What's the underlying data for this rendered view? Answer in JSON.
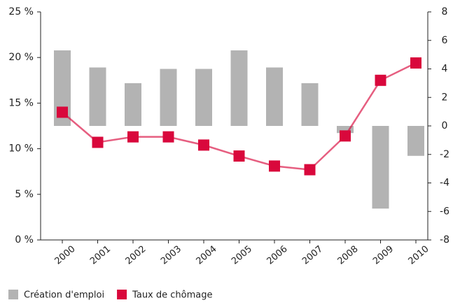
{
  "chart_data": {
    "type": "bar_line",
    "categories": [
      "2000",
      "2001",
      "2002",
      "2003",
      "2004",
      "2005",
      "2006",
      "2007",
      "2008",
      "2009",
      "2010"
    ],
    "series": [
      {
        "name": "Création d'emploi",
        "type": "bar",
        "axis": "y2",
        "color": "#b3b3b3",
        "values": [
          5.3,
          4.1,
          3.0,
          4.0,
          4.0,
          5.3,
          4.1,
          3.0,
          -0.5,
          -5.8,
          -2.1
        ]
      },
      {
        "name": "Taux de chômage",
        "type": "line",
        "axis": "y",
        "color": "#d9083c",
        "values": [
          14.0,
          10.7,
          11.3,
          11.3,
          10.4,
          9.2,
          8.1,
          7.7,
          11.4,
          17.5,
          19.4
        ]
      }
    ],
    "ylim": [
      0,
      25
    ],
    "yticks": [
      {
        "value": 0,
        "label": "0 %"
      },
      {
        "value": 5,
        "label": "5 %"
      },
      {
        "value": 10,
        "label": "10 %"
      },
      {
        "value": 15,
        "label": "15 %"
      },
      {
        "value": 20,
        "label": "20 %"
      },
      {
        "value": 25,
        "label": "25 %"
      }
    ],
    "y2lim": [
      -8,
      8
    ],
    "y2ticks": [
      -8,
      -6,
      -4,
      -2,
      0,
      2,
      4,
      6,
      8
    ],
    "legend": "bottom-left"
  }
}
